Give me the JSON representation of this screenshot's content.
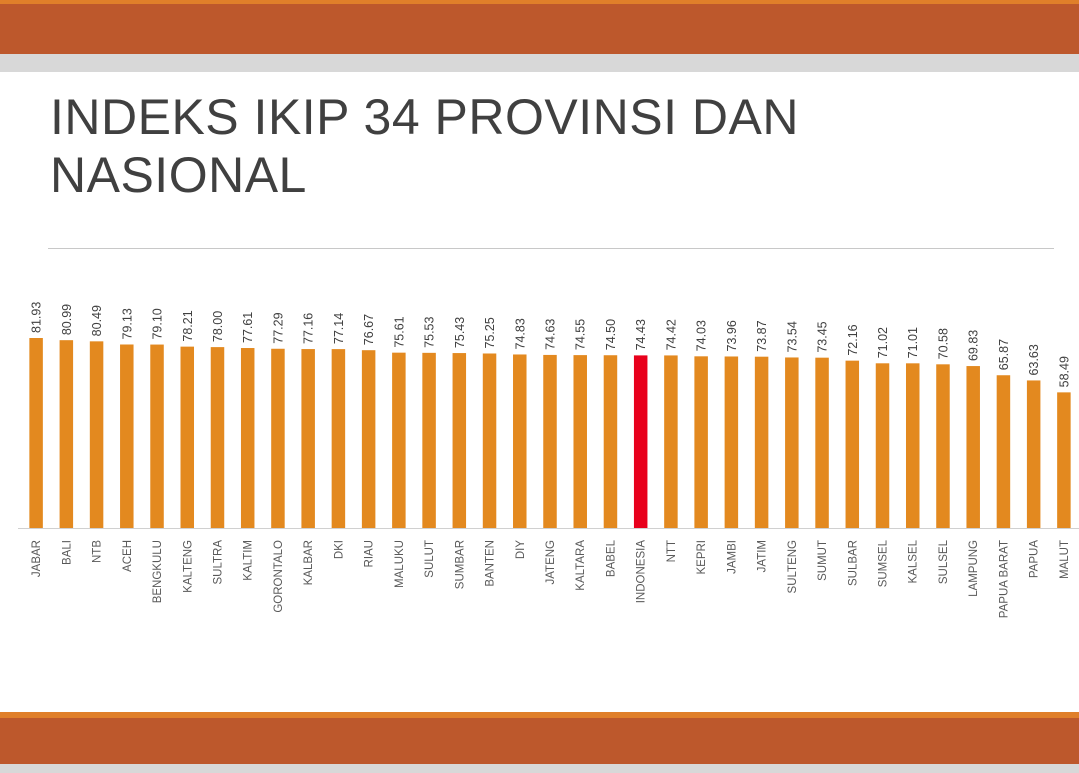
{
  "slide": {
    "title": "INDEKS IKIP 34 PROVINSI DAN NASIONAL"
  },
  "colors": {
    "band": "#bd582c",
    "band_accent": "#e07f2a",
    "bar": "#e3891f",
    "bar_highlight": "#e8001c"
  },
  "chart_data": {
    "type": "bar",
    "categories": [
      "JABAR",
      "BALI",
      "NTB",
      "ACEH",
      "BENGKULU",
      "KALTENG",
      "SULTRA",
      "KALTIM",
      "GORONTALO",
      "KALBAR",
      "DKI",
      "RIAU",
      "MALUKU",
      "SULUT",
      "SUMBAR",
      "BANTEN",
      "DIY",
      "JATENG",
      "KALTARA",
      "BABEL",
      "INDONESIA",
      "NTT",
      "KEPRI",
      "JAMBI",
      "JATIM",
      "SULTENG",
      "SUMUT",
      "SULBAR",
      "SUMSEL",
      "KALSEL",
      "SULSEL",
      "LAMPUNG",
      "PAPUA BARAT",
      "PAPUA",
      "MALUT"
    ],
    "values": [
      81.93,
      80.99,
      80.49,
      79.13,
      79.1,
      78.21,
      78.0,
      77.61,
      77.29,
      77.16,
      77.14,
      76.67,
      75.61,
      75.53,
      75.43,
      75.25,
      74.83,
      74.63,
      74.55,
      74.5,
      74.43,
      74.42,
      74.03,
      73.96,
      73.87,
      73.54,
      73.45,
      72.16,
      71.02,
      71.01,
      70.58,
      69.83,
      65.87,
      63.63,
      58.49
    ],
    "data_labels": [
      "81.93",
      "80.99",
      "80.49",
      "79.13",
      "79.10",
      "78.21",
      "78.00",
      "77.61",
      "77.29",
      "77.16",
      "77.14",
      "76.67",
      "75.61",
      "75.53",
      "75.43",
      "75.25",
      "74.83",
      "74.63",
      "74.55",
      "74.50",
      "74.43",
      "74.42",
      "74.03",
      "73.96",
      "73.87",
      "73.54",
      "73.45",
      "72.16",
      "71.02",
      "71.01",
      "70.58",
      "69.83",
      "65.87",
      "63.63",
      "58.49"
    ],
    "highlight": "INDONESIA",
    "title": "",
    "xlabel": "",
    "ylabel": "",
    "ylim": [
      0,
      100
    ],
    "grid": false,
    "legend": "none"
  }
}
